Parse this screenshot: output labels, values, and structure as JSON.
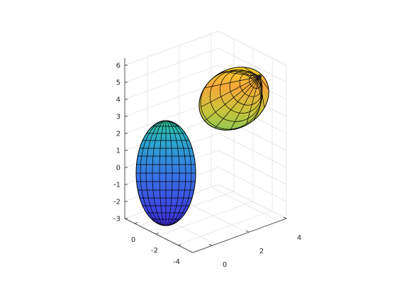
{
  "chart_data": {
    "type": "surface3d",
    "title": "",
    "xlabel": "",
    "ylabel": "",
    "zlabel": "",
    "xlim": [
      -1,
      4
    ],
    "ylim": [
      -4,
      1
    ],
    "zlim": [
      -3,
      6.5
    ],
    "x_ticks": [
      "0",
      "2",
      "4"
    ],
    "y_ticks": [
      "0",
      "-2",
      "-4"
    ],
    "z_ticks": [
      "-3",
      "-2",
      "-1",
      "0",
      "1",
      "2",
      "3",
      "4",
      "5",
      "6"
    ],
    "grid": true,
    "box": false,
    "colormap": "parula",
    "mesh_color": "#000000",
    "surfaces": [
      {
        "shape": "ellipsoid",
        "center": [
          0,
          -2,
          -0.8
        ],
        "radii": [
          0.9,
          0.9,
          2.7
        ],
        "orientation": "vertical",
        "color_range": [
          "#3c2fd6",
          "#2fb6a8"
        ]
      },
      {
        "shape": "ellipsoid",
        "center": [
          2.5,
          0.3,
          4.1
        ],
        "radii": [
          1.0,
          1.0,
          1.6
        ],
        "orientation": "tilted",
        "color_range": [
          "#7fcb5a",
          "#f7e21f"
        ]
      }
    ]
  }
}
